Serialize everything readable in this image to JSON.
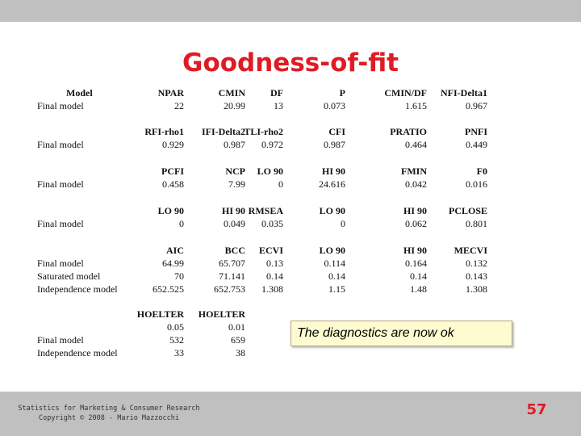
{
  "title": "Goodness-of-fit",
  "blocks": [
    {
      "headers": [
        "NPAR",
        "CMIN",
        "DF",
        "P",
        "CMIN/DF",
        "NFI-Delta1"
      ],
      "header_label": "Model",
      "rows": [
        {
          "label": "Final model",
          "values": [
            "22",
            "20.99",
            "13",
            "0.073",
            "1.615",
            "0.967"
          ]
        }
      ]
    },
    {
      "headers": [
        "RFI-rho1",
        "IFI-Delta2",
        "TLI-rho2",
        "CFI",
        "PRATIO",
        "PNFI"
      ],
      "rows": [
        {
          "label": "Final model",
          "values": [
            "0.929",
            "0.987",
            "0.972",
            "0.987",
            "0.464",
            "0.449"
          ]
        }
      ]
    },
    {
      "headers": [
        "PCFI",
        "NCP",
        "LO 90",
        "HI 90",
        "FMIN",
        "F0"
      ],
      "rows": [
        {
          "label": "Final model",
          "values": [
            "0.458",
            "7.99",
            "0",
            "24.616",
            "0.042",
            "0.016"
          ]
        }
      ]
    },
    {
      "headers": [
        "LO 90",
        "HI 90",
        "RMSEA",
        "LO 90",
        "HI 90",
        "PCLOSE"
      ],
      "rows": [
        {
          "label": "Final model",
          "values": [
            "0",
            "0.049",
            "0.035",
            "0",
            "0.062",
            "0.801"
          ]
        }
      ]
    },
    {
      "headers": [
        "AIC",
        "BCC",
        "ECVI",
        "LO 90",
        "HI 90",
        "MECVI"
      ],
      "rows": [
        {
          "label": "Final model",
          "values": [
            "64.99",
            "65.707",
            "0.13",
            "0.114",
            "0.164",
            "0.132"
          ]
        },
        {
          "label": "Saturated model",
          "values": [
            "70",
            "71.141",
            "0.14",
            "0.14",
            "0.14",
            "0.143"
          ]
        },
        {
          "label": "Independence model",
          "values": [
            "652.525",
            "652.753",
            "1.308",
            "1.15",
            "1.48",
            "1.308"
          ]
        }
      ]
    },
    {
      "headers": [
        "HOELTER",
        "HOELTER"
      ],
      "rows": [
        {
          "label": "",
          "values": [
            "0.05",
            "0.01"
          ]
        },
        {
          "label": "Final model",
          "values": [
            "532",
            "659"
          ]
        },
        {
          "label": "Independence model",
          "values": [
            "33",
            "38"
          ]
        }
      ]
    }
  ],
  "note": "The diagnostics are now ok",
  "footer": {
    "line1": "Statistics for Marketing & Consumer Research",
    "line2": "Copyright © 2008 - Mario Mazzocchi"
  },
  "page_number": "57"
}
